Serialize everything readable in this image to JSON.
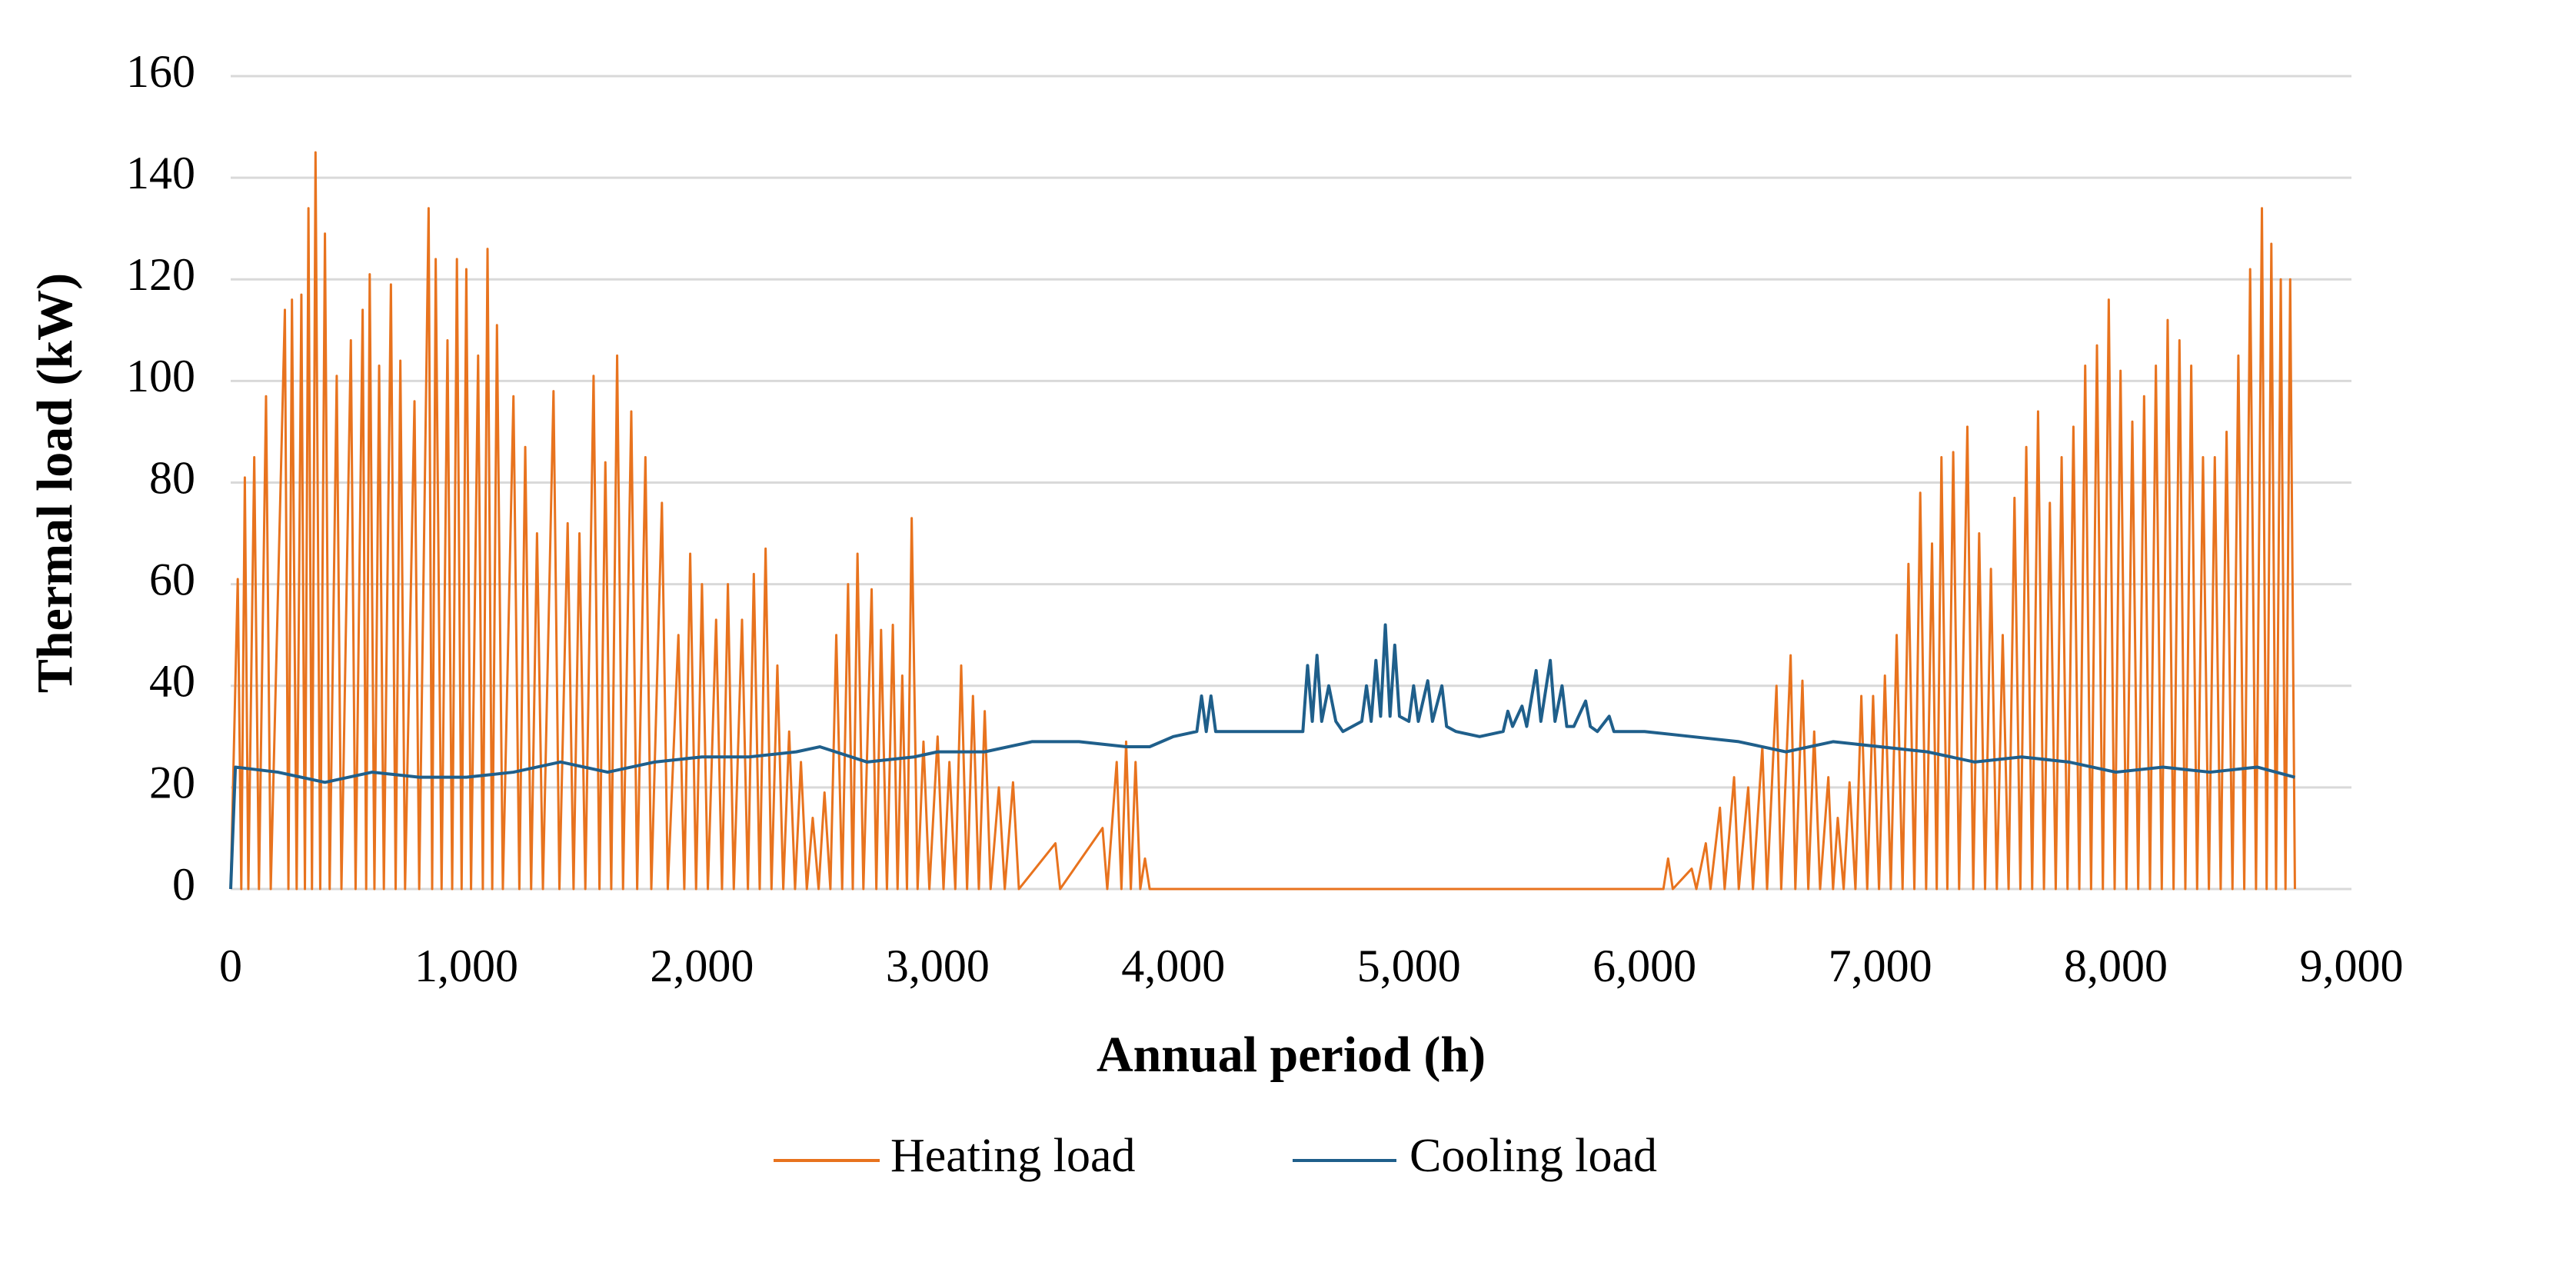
{
  "chart_data": {
    "type": "line",
    "xlabel": "Annual period (h)",
    "ylabel": "Thermal load (kW)",
    "xlim": [
      0,
      9000
    ],
    "xticks": [
      0,
      {
        "value": 1000,
        "label": "1,000"
      },
      {
        "value": 2000,
        "label": "2,000"
      },
      {
        "value": 3000,
        "label": "3,000"
      },
      {
        "value": 4000,
        "label": "4,000"
      },
      {
        "value": 5000,
        "label": "5,000"
      },
      {
        "value": 6000,
        "label": "6,000"
      },
      {
        "value": 7000,
        "label": "7,000"
      },
      {
        "value": 8000,
        "label": "8,000"
      },
      {
        "value": 9000,
        "label": "9,000"
      }
    ],
    "ylim": [
      0,
      160
    ],
    "yticks": [
      0,
      20,
      40,
      60,
      80,
      100,
      120,
      140,
      160
    ],
    "grid": true,
    "legend": "bottom",
    "series": [
      {
        "name": "Heating load",
        "color": "#e8731e",
        "x": [
          0,
          30,
          45,
          60,
          75,
          100,
          120,
          150,
          170,
          230,
          245,
          260,
          280,
          300,
          315,
          330,
          345,
          360,
          380,
          400,
          420,
          450,
          470,
          510,
          530,
          560,
          575,
          590,
          610,
          630,
          650,
          680,
          700,
          720,
          740,
          780,
          800,
          840,
          855,
          870,
          895,
          920,
          940,
          960,
          980,
          1000,
          1020,
          1050,
          1070,
          1090,
          1110,
          1130,
          1155,
          1200,
          1225,
          1250,
          1275,
          1300,
          1325,
          1370,
          1395,
          1430,
          1455,
          1480,
          1505,
          1540,
          1565,
          1590,
          1615,
          1640,
          1665,
          1700,
          1725,
          1760,
          1785,
          1830,
          1855,
          1900,
          1925,
          1950,
          1975,
          2000,
          2025,
          2060,
          2085,
          2110,
          2135,
          2170,
          2195,
          2220,
          2245,
          2270,
          2295,
          2320,
          2345,
          2370,
          2395,
          2420,
          2445,
          2470,
          2495,
          2520,
          2545,
          2570,
          2595,
          2620,
          2640,
          2660,
          2685,
          2720,
          2740,
          2760,
          2785,
          2810,
          2830,
          2850,
          2870,
          2890,
          2915,
          2940,
          2965,
          3000,
          3025,
          3050,
          3075,
          3100,
          3125,
          3150,
          3175,
          3200,
          3225,
          3260,
          3285,
          3320,
          3345,
          3500,
          3520,
          3700,
          3720,
          3760,
          3780,
          3800,
          3820,
          3840,
          3860,
          3880,
          3900,
          6080,
          6100,
          6120,
          6200,
          6220,
          6260,
          6280,
          6320,
          6340,
          6380,
          6400,
          6440,
          6460,
          6500,
          6520,
          6560,
          6580,
          6620,
          6640,
          6670,
          6695,
          6720,
          6745,
          6780,
          6800,
          6820,
          6845,
          6870,
          6895,
          6920,
          6945,
          6970,
          6995,
          7020,
          7045,
          7070,
          7095,
          7120,
          7145,
          7170,
          7195,
          7220,
          7240,
          7260,
          7285,
          7310,
          7335,
          7370,
          7395,
          7420,
          7445,
          7470,
          7495,
          7520,
          7545,
          7570,
          7595,
          7620,
          7645,
          7670,
          7695,
          7720,
          7745,
          7770,
          7795,
          7820,
          7845,
          7870,
          7895,
          7920,
          7945,
          7970,
          7995,
          8020,
          8045,
          8070,
          8095,
          8120,
          8145,
          8170,
          8195,
          8220,
          8245,
          8270,
          8295,
          8320,
          8345,
          8370,
          8395,
          8420,
          8445,
          8470,
          8495,
          8520,
          8545,
          8570,
          8595,
          8620,
          8640,
          8660,
          8680,
          8700,
          8720,
          8740,
          8760
        ],
        "values": [
          0,
          61,
          0,
          81,
          0,
          85,
          0,
          97,
          0,
          114,
          0,
          116,
          0,
          117,
          0,
          134,
          0,
          145,
          0,
          129,
          0,
          101,
          0,
          108,
          0,
          114,
          0,
          121,
          0,
          103,
          0,
          119,
          0,
          104,
          0,
          96,
          0,
          134,
          0,
          124,
          0,
          108,
          0,
          124,
          0,
          122,
          0,
          105,
          0,
          126,
          0,
          111,
          0,
          97,
          0,
          87,
          0,
          70,
          0,
          98,
          0,
          72,
          0,
          70,
          0,
          101,
          0,
          84,
          0,
          105,
          0,
          94,
          0,
          85,
          0,
          76,
          0,
          50,
          0,
          66,
          0,
          60,
          0,
          53,
          0,
          60,
          0,
          53,
          0,
          62,
          0,
          67,
          0,
          44,
          0,
          31,
          0,
          25,
          0,
          14,
          0,
          19,
          0,
          50,
          0,
          60,
          0,
          66,
          0,
          59,
          0,
          51,
          0,
          52,
          0,
          42,
          0,
          73,
          0,
          29,
          0,
          30,
          0,
          25,
          0,
          44,
          0,
          38,
          0,
          35,
          0,
          20,
          0,
          21,
          0,
          9,
          0,
          12,
          0,
          25,
          0,
          29,
          0,
          25,
          0,
          6,
          0,
          0,
          6,
          0,
          4,
          0,
          9,
          0,
          16,
          0,
          22,
          0,
          20,
          0,
          28,
          0,
          40,
          0,
          46,
          0,
          41,
          0,
          31,
          0,
          22,
          0,
          14,
          0,
          21,
          0,
          38,
          0,
          38,
          0,
          42,
          0,
          50,
          0,
          64,
          0,
          78,
          0,
          68,
          0,
          85,
          0,
          86,
          0,
          91,
          0,
          70,
          0,
          63,
          0,
          50,
          0,
          77,
          0,
          87,
          0,
          94,
          0,
          76,
          0,
          85,
          0,
          91,
          0,
          103,
          0,
          107,
          0,
          116,
          0,
          102,
          0,
          92,
          0,
          97,
          0,
          103,
          0,
          112,
          0,
          108,
          0,
          103,
          0,
          85,
          0,
          85,
          0,
          90,
          0,
          105,
          0,
          122,
          0,
          134,
          0,
          127,
          0,
          120,
          0,
          120,
          0
        ]
      },
      {
        "name": "Cooling load",
        "color": "#1f5f8b",
        "x": [
          0,
          20,
          200,
          400,
          600,
          800,
          1000,
          1200,
          1400,
          1600,
          1800,
          2000,
          2200,
          2400,
          2500,
          2700,
          2900,
          3000,
          3200,
          3400,
          3600,
          3800,
          3900,
          4000,
          4100,
          4120,
          4140,
          4160,
          4180,
          4300,
          4500,
          4550,
          4570,
          4590,
          4610,
          4630,
          4660,
          4690,
          4720,
          4800,
          4820,
          4840,
          4860,
          4880,
          4900,
          4920,
          4940,
          4960,
          5000,
          5020,
          5040,
          5080,
          5100,
          5140,
          5160,
          5200,
          5300,
          5400,
          5420,
          5440,
          5480,
          5500,
          5540,
          5560,
          5600,
          5620,
          5650,
          5670,
          5700,
          5750,
          5770,
          5800,
          5850,
          5870,
          6000,
          6200,
          6400,
          6600,
          6800,
          7000,
          7200,
          7400,
          7600,
          7800,
          8000,
          8200,
          8400,
          8600,
          8760
        ],
        "values": [
          0,
          24,
          23,
          21,
          23,
          22,
          22,
          23,
          25,
          23,
          25,
          26,
          26,
          27,
          28,
          25,
          26,
          27,
          27,
          29,
          29,
          28,
          28,
          30,
          31,
          38,
          31,
          38,
          31,
          31,
          31,
          31,
          44,
          33,
          46,
          33,
          40,
          33,
          31,
          33,
          40,
          33,
          45,
          34,
          52,
          34,
          48,
          34,
          33,
          40,
          33,
          41,
          33,
          40,
          32,
          31,
          30,
          31,
          35,
          32,
          36,
          32,
          43,
          33,
          45,
          33,
          40,
          32,
          32,
          37,
          32,
          31,
          34,
          31,
          31,
          30,
          29,
          27,
          29,
          28,
          27,
          25,
          26,
          25,
          23,
          24,
          23,
          24,
          22
        ]
      }
    ]
  }
}
